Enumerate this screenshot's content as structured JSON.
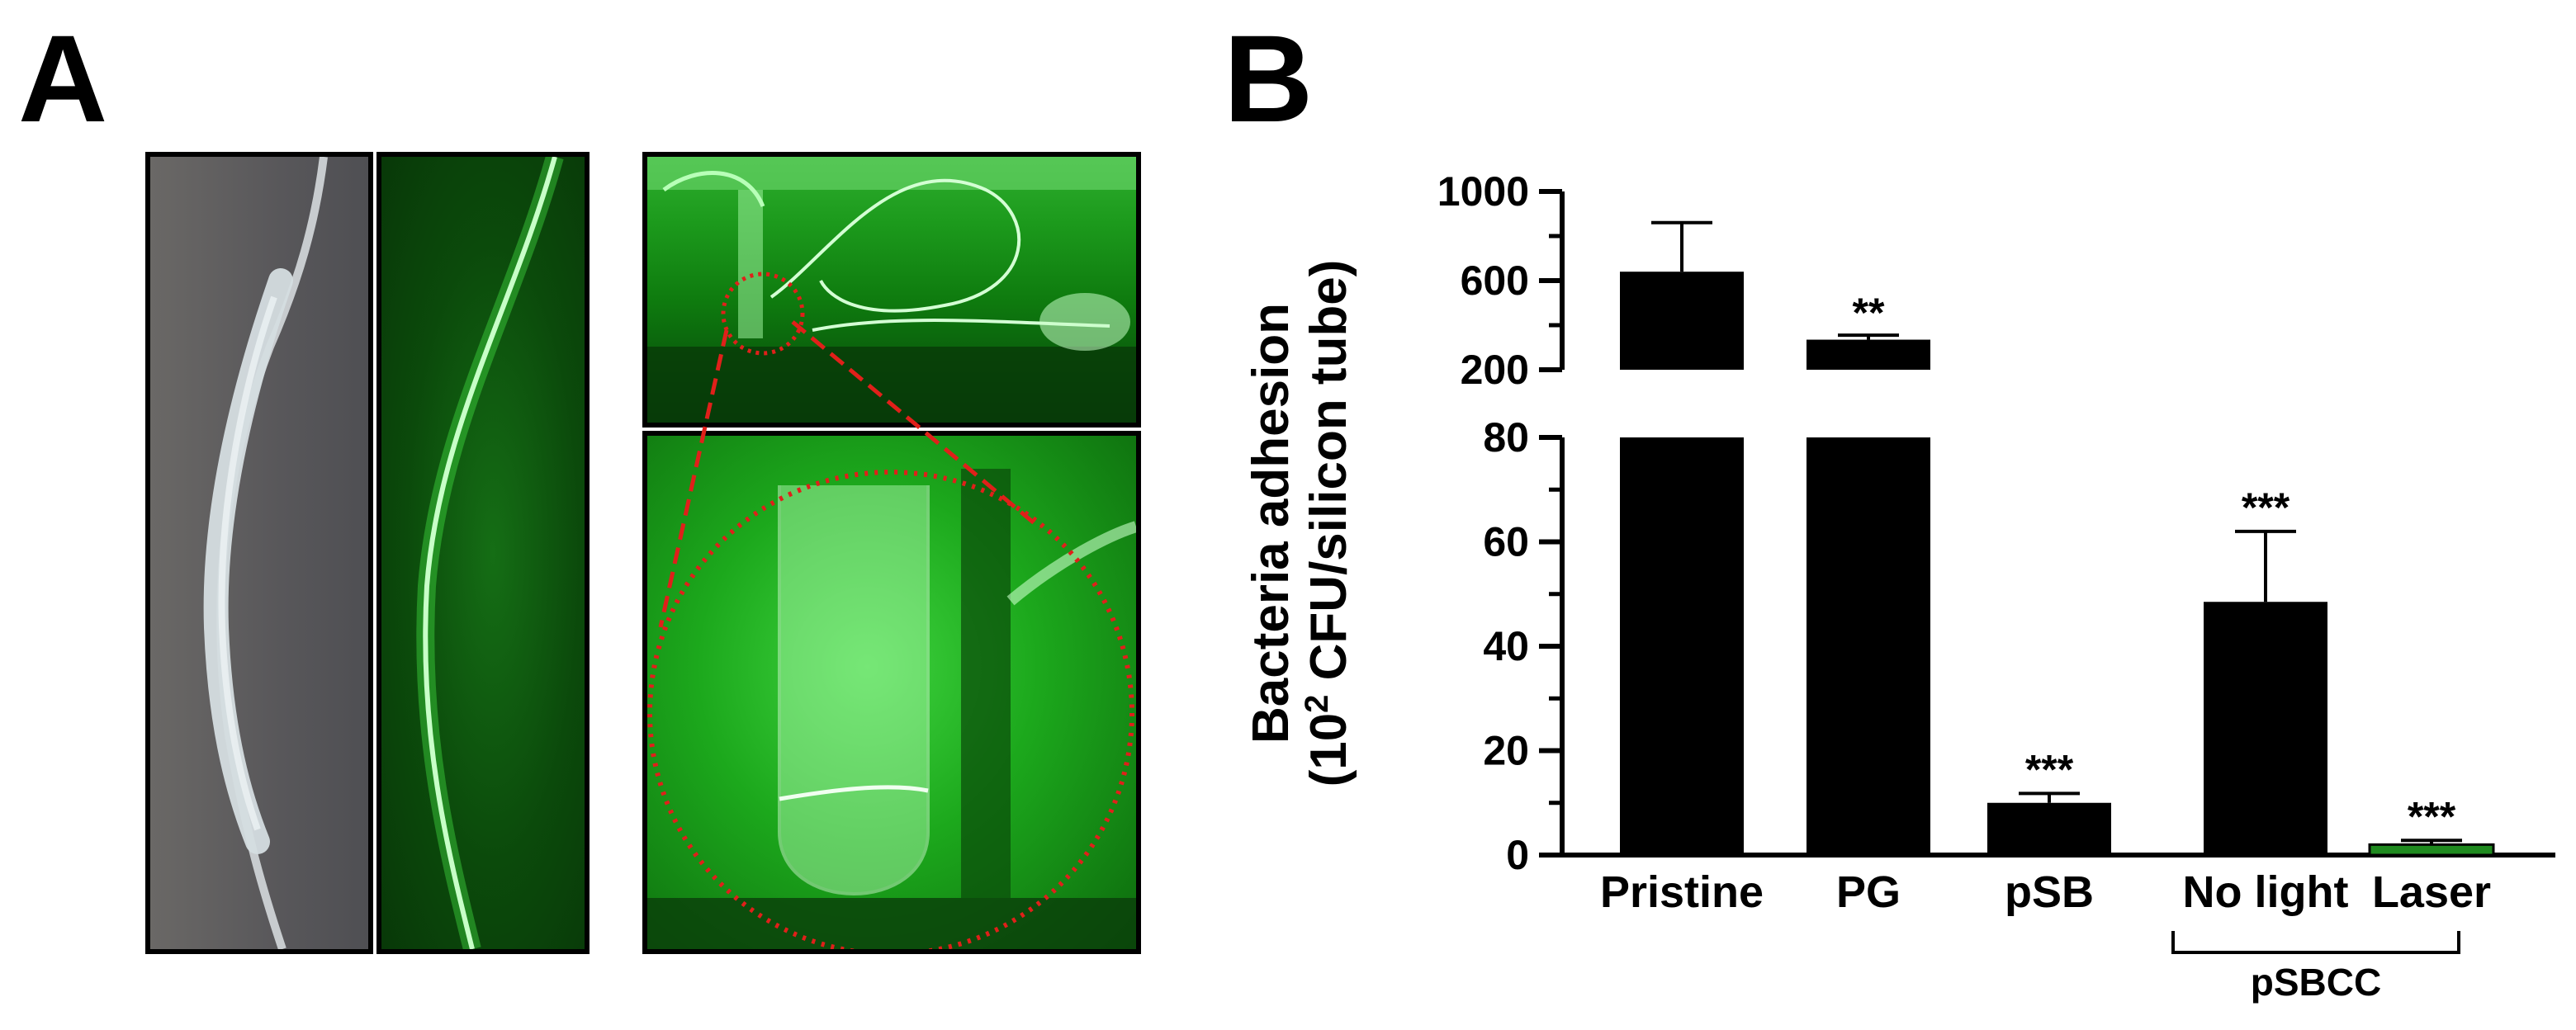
{
  "panels": {
    "a_label": "A",
    "b_label": "B"
  },
  "colors": {
    "bar": "#000000",
    "laser_bar": "#1f8a1f",
    "photo_gray": "#5e5c5a",
    "photo_green": "#0e6a0e",
    "laser_green": "#3cff3c",
    "highlight_circle": "#e0201a"
  },
  "chart_data": {
    "type": "bar",
    "broken_axis": true,
    "axis_break": [
      80,
      200
    ],
    "ylim_lower": [
      0,
      80
    ],
    "ylim_upper": [
      200,
      1000
    ],
    "ylabel_line1": "Bacteria adhesion",
    "ylabel_line2_prefix": "(10",
    "ylabel_line2_sup": "2",
    "ylabel_line2_suffix": " CFU/silicon tube)",
    "yticks_lower": [
      "0",
      "20",
      "40",
      "60",
      "80"
    ],
    "yticks_upper": [
      "200",
      "600",
      "1000"
    ],
    "categories": [
      "Pristine",
      "PG",
      "pSB",
      "No light",
      "Laser"
    ],
    "values": [
      640,
      335,
      10,
      48.5,
      2
    ],
    "errors": [
      220,
      20,
      1.8,
      13.5,
      0.8
    ],
    "significance": [
      "",
      "**",
      "***",
      "***",
      "***"
    ],
    "group_label": "pSBCC",
    "group_members": [
      "No light",
      "Laser"
    ]
  }
}
